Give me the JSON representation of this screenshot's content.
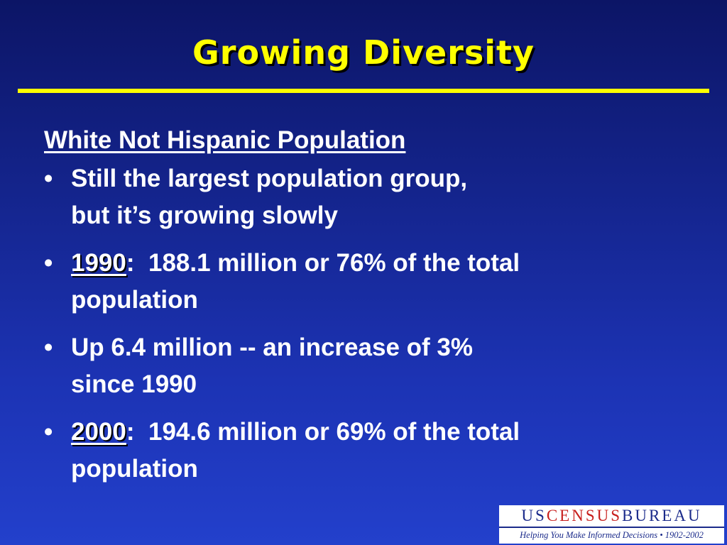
{
  "title": "Growing Diversity",
  "heading": "White Not Hispanic Population",
  "bullets": [
    {
      "line1": "Still the largest population group,",
      "line2": "but it’s growing slowly"
    },
    {
      "year": "1990",
      "rest": ":  188.1 million or 76% of the total",
      "line2": "population"
    },
    {
      "line1": "Up 6.4 million -- an increase of 3%",
      "line2": "since 1990"
    },
    {
      "year": "2000",
      "rest": ":  194.6 million or 69% of the total",
      "line2": "population"
    }
  ],
  "bullet_char": "•",
  "logo": {
    "us": "US",
    "census": "CENSUS",
    "bureau": "BUREAU",
    "tagline": "Helping You Make Informed Decisions • 1902-2002"
  },
  "colors": {
    "title": "#ffff00",
    "rule": "#ffff00",
    "text": "#ffffff",
    "background": "#1c33b4"
  }
}
